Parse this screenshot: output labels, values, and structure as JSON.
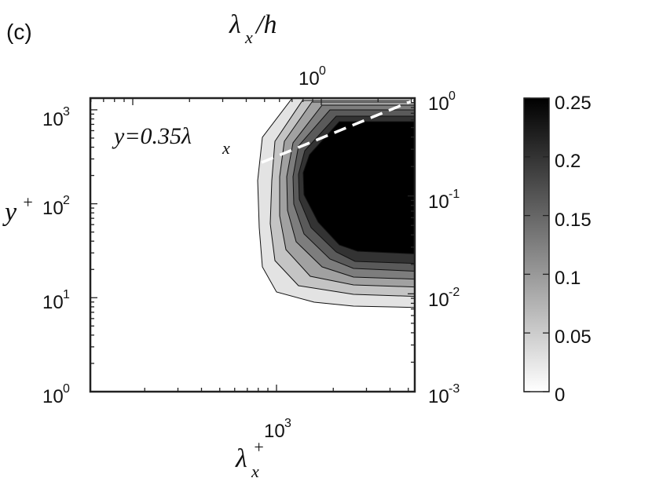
{
  "panel_label": "(c)",
  "chart_data": {
    "type": "contour",
    "title": "",
    "x_axis": {
      "label": "λx+",
      "scale": "log",
      "ticks": [
        {
          "value": 1000,
          "base": "10",
          "exp": "3"
        }
      ]
    },
    "x2_axis": {
      "label": "λx/h",
      "scale": "log",
      "ticks": [
        {
          "value": 1,
          "base": "10",
          "exp": "0"
        }
      ]
    },
    "y_axis": {
      "label": "y+",
      "scale": "log",
      "range": [
        1,
        1500
      ],
      "ticks": [
        {
          "value": 1,
          "base": "10",
          "exp": "0"
        },
        {
          "value": 10,
          "base": "10",
          "exp": "1"
        },
        {
          "value": 100,
          "base": "10",
          "exp": "2"
        },
        {
          "value": 1000,
          "base": "10",
          "exp": "3"
        }
      ]
    },
    "y2_axis": {
      "scale": "log",
      "range": [
        0.001,
        1
      ],
      "ticks": [
        {
          "value": 0.001,
          "base": "10",
          "exp": "-3"
        },
        {
          "value": 0.01,
          "base": "10",
          "exp": "-2"
        },
        {
          "value": 0.1,
          "base": "10",
          "exp": "-1"
        },
        {
          "value": 1,
          "base": "10",
          "exp": "0"
        }
      ]
    },
    "contour_levels": [
      0,
      0.05,
      0.1,
      0.15,
      0.2,
      0.25
    ],
    "colorbar": {
      "colormap": "gray-reversed",
      "range": [
        0,
        0.25
      ],
      "ticks": [
        "0.25",
        "0.2",
        "0.15",
        "0.1",
        "0.05",
        "0"
      ]
    },
    "annotation": {
      "text": "y=0.35λx",
      "reference_line": "dashed white line y = 0.35·λx"
    }
  }
}
